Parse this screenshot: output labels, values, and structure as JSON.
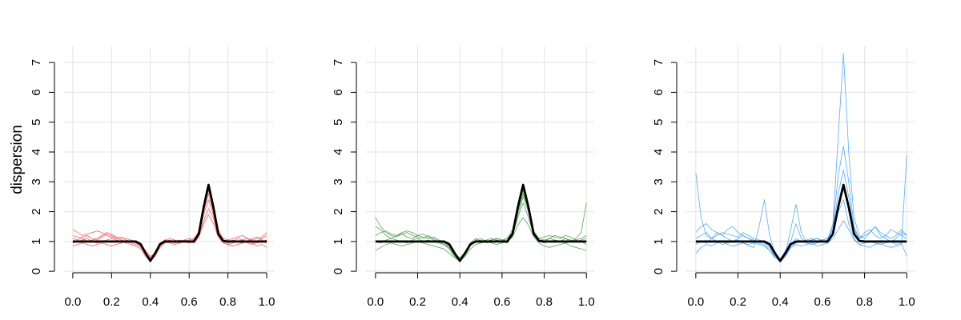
{
  "chart_data": [
    {
      "type": "line",
      "ylabel": "dispersion",
      "xlim": [
        -0.045,
        1.037
      ],
      "ylim": [
        -0.05,
        7.54
      ],
      "xticks": [
        {
          "value": 0,
          "label": "0.0"
        },
        0.2,
        0.4,
        0.6,
        0.8,
        {
          "value": 1,
          "label": "1.0"
        }
      ],
      "yticks": [
        0,
        1,
        2,
        3,
        4,
        5,
        6,
        7
      ],
      "grid": true,
      "x": [
        0,
        0.025,
        0.05,
        0.075,
        0.1,
        0.125,
        0.15,
        0.175,
        0.2,
        0.225,
        0.25,
        0.275,
        0.3,
        0.325,
        0.35,
        0.375,
        0.4,
        0.425,
        0.45,
        0.475,
        0.5,
        0.525,
        0.55,
        0.575,
        0.6,
        0.625,
        0.65,
        0.675,
        0.7,
        0.725,
        0.75,
        0.775,
        0.8,
        0.825,
        0.85,
        0.875,
        0.9,
        0.925,
        0.95,
        0.975,
        1
      ],
      "series": [
        {
          "color": "#ff2a2a",
          "values": [
            1.1,
            1.05,
            1.15,
            1.2,
            1.1,
            1.05,
            1.15,
            1.25,
            1.2,
            1.1,
            1.05,
            1.0,
            0.95,
            0.9,
            0.8,
            0.6,
            0.4,
            0.55,
            0.85,
            1.0,
            1.05,
            1.0,
            0.95,
            1.0,
            1.05,
            1.1,
            1.3,
            2.0,
            2.6,
            2.0,
            1.3,
            1.05,
            0.95,
            1.0,
            1.1,
            1.05,
            0.95,
            0.9,
            1.0,
            1.1,
            1.2
          ]
        },
        {
          "color": "#ff2a2a",
          "values": [
            0.85,
            0.9,
            0.95,
            0.9,
            0.85,
            0.9,
            0.95,
            0.9,
            0.85,
            0.9,
            0.95,
            1.0,
            1.0,
            0.95,
            0.85,
            0.65,
            0.45,
            0.6,
            0.9,
            1.0,
            0.95,
            0.9,
            0.95,
            1.0,
            0.95,
            1.0,
            1.2,
            1.7,
            2.1,
            1.8,
            1.2,
            1.0,
            0.9,
            0.85,
            0.9,
            0.95,
            1.0,
            0.95,
            0.85,
            0.9,
            0.8
          ]
        },
        {
          "color": "#ff2a2a",
          "values": [
            1.4,
            1.3,
            1.2,
            1.25,
            1.3,
            1.35,
            1.3,
            1.2,
            1.15,
            1.1,
            1.15,
            1.1,
            1.05,
            1.0,
            0.9,
            0.7,
            0.5,
            0.6,
            0.9,
            1.05,
            1.1,
            1.05,
            1.0,
            1.05,
            1.1,
            1.05,
            1.35,
            2.2,
            2.7,
            2.2,
            1.4,
            1.1,
            1.05,
            1.1,
            1.15,
            1.2,
            1.1,
            1.05,
            1.1,
            1.15,
            1.3
          ]
        },
        {
          "color": "#ff2a2a",
          "values": [
            0.95,
            1.0,
            1.05,
            1.1,
            1.0,
            0.95,
            1.0,
            1.05,
            1.1,
            1.05,
            1.0,
            0.95,
            0.9,
            0.85,
            0.75,
            0.5,
            0.35,
            0.5,
            0.8,
            0.95,
            1.0,
            1.0,
            1.05,
            1.0,
            1.0,
            0.95,
            1.15,
            1.6,
            1.9,
            1.6,
            1.15,
            0.95,
            0.9,
            0.95,
            1.0,
            1.05,
            1.1,
            1.0,
            0.95,
            1.0,
            1.05
          ]
        },
        {
          "color": "#ff2a2a",
          "values": [
            1.2,
            1.15,
            1.1,
            1.0,
            1.05,
            1.1,
            1.2,
            1.3,
            1.25,
            1.15,
            1.1,
            1.05,
            1.0,
            0.95,
            0.85,
            0.55,
            0.4,
            0.65,
            0.95,
            1.05,
            1.0,
            0.95,
            1.0,
            1.05,
            1.0,
            1.05,
            1.25,
            1.9,
            2.4,
            1.9,
            1.25,
            1.05,
            1.0,
            1.05,
            1.0,
            0.95,
            1.0,
            1.1,
            1.15,
            1.05,
            0.95
          ]
        },
        {
          "color": "#000000",
          "values": [
            1,
            1,
            1,
            1,
            1,
            1,
            1,
            1,
            1,
            1,
            1,
            1,
            1,
            1,
            0.91,
            0.61,
            0.35,
            0.61,
            0.91,
            1,
            1,
            1,
            1,
            1,
            1,
            1,
            1.26,
            2.15,
            2.9,
            2.15,
            1.26,
            1.02,
            1,
            1,
            1,
            1,
            1,
            1,
            1,
            1,
            1
          ]
        }
      ]
    },
    {
      "type": "line",
      "xlim": [
        -0.045,
        1.037
      ],
      "ylim": [
        -0.05,
        7.54
      ],
      "xticks": [
        {
          "value": 0,
          "label": "0.0"
        },
        0.2,
        0.4,
        0.6,
        0.8,
        {
          "value": 1,
          "label": "1.0"
        }
      ],
      "yticks": [
        0,
        1,
        2,
        3,
        4,
        5,
        6,
        7
      ],
      "grid": true,
      "x": [
        0,
        0.025,
        0.05,
        0.075,
        0.1,
        0.125,
        0.15,
        0.175,
        0.2,
        0.225,
        0.25,
        0.275,
        0.3,
        0.325,
        0.35,
        0.375,
        0.4,
        0.425,
        0.45,
        0.475,
        0.5,
        0.525,
        0.55,
        0.575,
        0.6,
        0.625,
        0.65,
        0.675,
        0.7,
        0.725,
        0.75,
        0.775,
        0.8,
        0.825,
        0.85,
        0.875,
        0.9,
        0.925,
        0.95,
        0.975,
        1
      ],
      "series": [
        {
          "color": "#228b22",
          "values": [
            1.8,
            1.5,
            1.3,
            1.2,
            1.15,
            1.25,
            1.3,
            1.2,
            1.15,
            1.1,
            1.2,
            1.1,
            1.0,
            0.9,
            0.75,
            0.5,
            0.4,
            0.6,
            0.9,
            1.05,
            1.1,
            1.0,
            1.05,
            1.1,
            1.05,
            1.1,
            1.4,
            2.1,
            2.7,
            2.1,
            1.35,
            1.1,
            1.05,
            1.1,
            1.2,
            1.15,
            1.1,
            1.0,
            1.1,
            1.3,
            2.3
          ]
        },
        {
          "color": "#228b22",
          "values": [
            0.7,
            0.8,
            0.9,
            0.95,
            0.9,
            0.85,
            0.9,
            0.95,
            1.0,
            0.95,
            0.9,
            0.85,
            0.8,
            0.75,
            0.6,
            0.45,
            0.35,
            0.5,
            0.75,
            0.9,
            0.95,
            1.0,
            0.95,
            0.9,
            0.95,
            1.0,
            1.15,
            1.55,
            1.8,
            1.55,
            1.15,
            0.95,
            0.85,
            0.8,
            0.85,
            0.9,
            0.95,
            0.85,
            0.8,
            0.75,
            0.7
          ]
        },
        {
          "color": "#228b22",
          "values": [
            1.2,
            1.3,
            1.35,
            1.25,
            1.2,
            1.3,
            1.35,
            1.3,
            1.2,
            1.15,
            1.1,
            1.15,
            1.05,
            1.0,
            0.85,
            0.6,
            0.45,
            0.65,
            0.95,
            1.1,
            1.0,
            1.05,
            1.1,
            1.05,
            1.0,
            1.1,
            1.3,
            2.0,
            2.6,
            2.1,
            1.3,
            1.1,
            1.15,
            1.2,
            1.15,
            1.1,
            1.2,
            1.15,
            1.05,
            1.1,
            1.2
          ]
        },
        {
          "color": "#228b22",
          "values": [
            1.0,
            0.95,
            1.05,
            1.1,
            1.05,
            1.0,
            0.95,
            1.05,
            1.1,
            1.0,
            1.05,
            1.0,
            0.95,
            0.9,
            0.8,
            0.55,
            0.4,
            0.55,
            0.85,
            1.0,
            1.05,
            0.95,
            1.0,
            1.05,
            1.0,
            0.95,
            1.2,
            1.8,
            2.3,
            1.8,
            1.2,
            1.0,
            0.95,
            1.0,
            1.05,
            1.0,
            0.95,
            1.0,
            1.05,
            1.0,
            0.9
          ]
        },
        {
          "color": "#228b22",
          "values": [
            1.5,
            1.4,
            1.2,
            1.1,
            1.2,
            1.25,
            1.15,
            1.1,
            1.2,
            1.25,
            1.15,
            1.05,
            1.0,
            0.95,
            0.8,
            0.5,
            0.35,
            0.6,
            0.9,
            1.0,
            0.95,
            1.0,
            1.05,
            1.1,
            1.05,
            1.0,
            1.25,
            1.9,
            2.5,
            2.0,
            1.3,
            1.05,
            1.0,
            1.1,
            1.05,
            1.0,
            1.1,
            1.05,
            1.0,
            1.05,
            1.1
          ]
        },
        {
          "color": "#000000",
          "values": [
            1,
            1,
            1,
            1,
            1,
            1,
            1,
            1,
            1,
            1,
            1,
            1,
            1,
            1,
            0.91,
            0.61,
            0.35,
            0.61,
            0.91,
            1,
            1,
            1,
            1,
            1,
            1,
            1,
            1.26,
            2.15,
            2.9,
            2.15,
            1.26,
            1.02,
            1,
            1,
            1,
            1,
            1,
            1,
            1,
            1,
            1
          ]
        }
      ]
    },
    {
      "type": "line",
      "xlim": [
        -0.045,
        1.037
      ],
      "ylim": [
        -0.05,
        7.54
      ],
      "xticks": [
        {
          "value": 0,
          "label": "0.0"
        },
        0.2,
        0.4,
        0.6,
        0.8,
        {
          "value": 1,
          "label": "1.0"
        }
      ],
      "yticks": [
        0,
        1,
        2,
        3,
        4,
        5,
        6,
        7
      ],
      "grid": true,
      "x": [
        0,
        0.025,
        0.05,
        0.075,
        0.1,
        0.125,
        0.15,
        0.175,
        0.2,
        0.225,
        0.25,
        0.275,
        0.3,
        0.325,
        0.35,
        0.375,
        0.4,
        0.425,
        0.45,
        0.475,
        0.5,
        0.525,
        0.55,
        0.575,
        0.6,
        0.625,
        0.65,
        0.675,
        0.7,
        0.725,
        0.75,
        0.775,
        0.8,
        0.825,
        0.85,
        0.875,
        0.9,
        0.925,
        0.95,
        0.975,
        1
      ],
      "series": [
        {
          "color": "#1e90ff",
          "values": [
            3.3,
            1.8,
            1.2,
            1.1,
            1.3,
            1.2,
            1.1,
            1.0,
            1.1,
            1.2,
            1.1,
            1.0,
            0.95,
            0.9,
            0.7,
            0.45,
            0.35,
            0.6,
            1.4,
            2.25,
            1.3,
            1.0,
            1.05,
            1.1,
            1.0,
            1.05,
            1.6,
            4.5,
            7.3,
            4.0,
            1.8,
            1.2,
            1.1,
            1.3,
            1.5,
            1.2,
            1.1,
            1.0,
            1.1,
            1.3,
            1.2
          ]
        },
        {
          "color": "#1e90ff",
          "values": [
            0.6,
            0.8,
            0.9,
            0.85,
            0.95,
            1.0,
            0.9,
            0.85,
            0.9,
            0.95,
            0.85,
            0.8,
            1.5,
            2.4,
            1.2,
            0.6,
            0.3,
            0.5,
            0.8,
            0.9,
            0.85,
            0.9,
            0.95,
            0.85,
            0.9,
            0.95,
            1.2,
            2.0,
            2.4,
            1.6,
            1.1,
            0.9,
            0.85,
            0.8,
            0.9,
            0.95,
            0.85,
            0.8,
            0.85,
            0.9,
            3.9
          ]
        },
        {
          "color": "#1e90ff",
          "values": [
            1.3,
            1.5,
            1.6,
            1.4,
            1.3,
            1.2,
            1.4,
            1.5,
            1.3,
            1.2,
            1.1,
            1.05,
            1.0,
            0.95,
            0.8,
            0.5,
            0.4,
            0.55,
            0.9,
            1.1,
            1.0,
            1.05,
            1.1,
            1.0,
            1.05,
            1.1,
            1.5,
            3.2,
            4.2,
            3.0,
            1.5,
            1.1,
            1.3,
            1.4,
            1.2,
            1.1,
            1.2,
            1.4,
            1.3,
            1.2,
            1.1
          ]
        },
        {
          "color": "#1e90ff",
          "values": [
            0.9,
            1.0,
            0.95,
            1.1,
            1.0,
            0.9,
            0.95,
            1.0,
            1.05,
            0.95,
            0.9,
            0.95,
            0.9,
            0.85,
            0.7,
            0.5,
            0.35,
            0.5,
            0.8,
            0.95,
            1.0,
            0.95,
            0.9,
            0.95,
            1.0,
            0.95,
            1.1,
            1.4,
            1.7,
            1.4,
            1.05,
            0.9,
            0.95,
            1.0,
            0.95,
            0.9,
            0.95,
            1.0,
            0.9,
            0.95,
            0.5
          ]
        },
        {
          "color": "#1e90ff",
          "values": [
            1.1,
            1.2,
            1.3,
            1.1,
            1.2,
            1.3,
            1.25,
            1.2,
            1.15,
            1.3,
            1.2,
            1.1,
            1.05,
            1.0,
            0.85,
            0.55,
            0.4,
            0.7,
            1.0,
            1.6,
            1.1,
            1.0,
            1.05,
            1.1,
            1.05,
            1.1,
            1.4,
            2.6,
            3.4,
            2.5,
            1.4,
            1.1,
            1.2,
            1.3,
            1.5,
            1.3,
            1.2,
            1.1,
            1.2,
            1.4,
            1.2
          ]
        },
        {
          "color": "#000000",
          "values": [
            1,
            1,
            1,
            1,
            1,
            1,
            1,
            1,
            1,
            1,
            1,
            1,
            1,
            1,
            0.91,
            0.61,
            0.35,
            0.61,
            0.91,
            1,
            1,
            1,
            1,
            1,
            1,
            1,
            1.26,
            2.15,
            2.9,
            2.15,
            1.26,
            1.02,
            1,
            1,
            1,
            1,
            1,
            1,
            1,
            1,
            1
          ]
        }
      ]
    }
  ]
}
